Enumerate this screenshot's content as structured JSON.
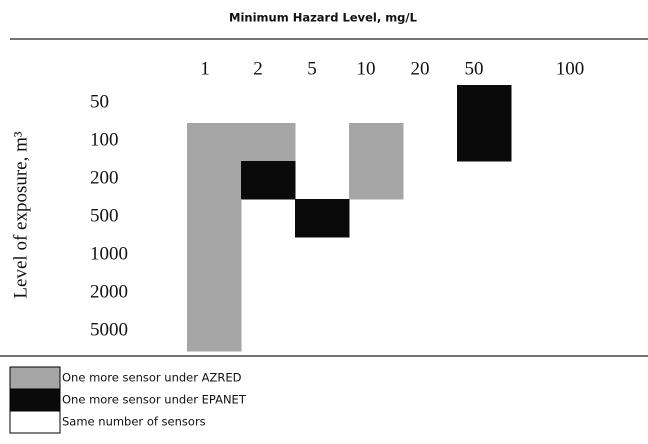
{
  "chart_data": {
    "type": "heatmap",
    "title": "Minimum Hazard Level, mg/L",
    "y_label": "Level of exposure, m³",
    "x": [
      "1",
      "2",
      "5",
      "10",
      "20",
      "50",
      "100"
    ],
    "y": [
      "50",
      "100",
      "200",
      "500",
      "1000",
      "2000",
      "5000"
    ],
    "values": [
      [
        2,
        2,
        2,
        2,
        2,
        1,
        2
      ],
      [
        0,
        0,
        2,
        0,
        2,
        1,
        2
      ],
      [
        0,
        1,
        2,
        0,
        2,
        2,
        2
      ],
      [
        0,
        2,
        1,
        2,
        2,
        2,
        2
      ],
      [
        0,
        2,
        2,
        2,
        2,
        2,
        2
      ],
      [
        0,
        2,
        2,
        2,
        2,
        2,
        2
      ],
      [
        0,
        2,
        2,
        2,
        2,
        2,
        2
      ]
    ],
    "legend": [
      {
        "label": "One more sensor under AZRED",
        "color": "#a6a6a6"
      },
      {
        "label": "One more sensor under EPANET",
        "color": "#0a0a0a"
      },
      {
        "label": "Same number of sensors",
        "color": "#ffffff"
      }
    ]
  }
}
